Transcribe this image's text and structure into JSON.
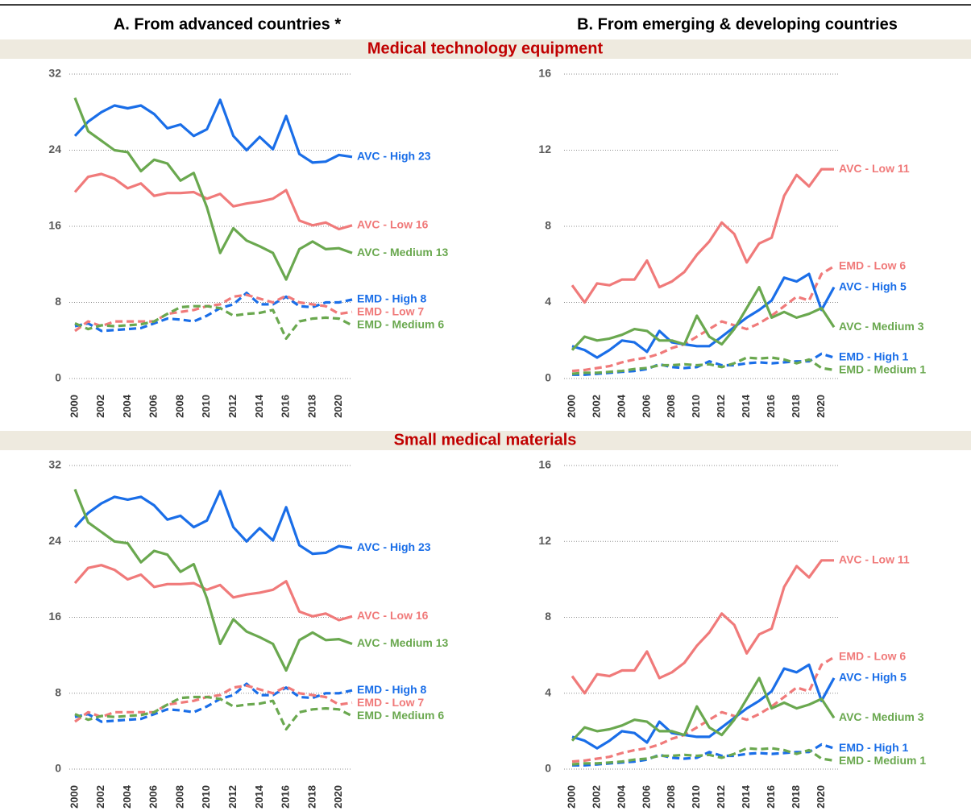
{
  "columns": [
    "A. From advanced countries *",
    "B. From emerging & developing countries"
  ],
  "sections": [
    "Medical technology equipment",
    "Small medical materials"
  ],
  "chart_data": [
    {
      "type": "line",
      "x": [
        2000,
        2001,
        2002,
        2003,
        2004,
        2005,
        2006,
        2007,
        2008,
        2009,
        2010,
        2011,
        2012,
        2013,
        2014,
        2015,
        2016,
        2017,
        2018,
        2019,
        2020,
        2021
      ],
      "xticks": [
        2000,
        2002,
        2004,
        2006,
        2008,
        2010,
        2012,
        2014,
        2016,
        2018,
        2020
      ],
      "ylim": [
        0,
        32
      ],
      "yticks": [
        0,
        8,
        16,
        24,
        32
      ],
      "grid": true,
      "series": [
        {
          "name": "AVC - High 23",
          "color": "#1a6ee8",
          "dashed": false,
          "values": [
            25.5,
            27,
            28,
            28.7,
            28.4,
            28.7,
            27.8,
            26.3,
            26.7,
            25.5,
            26.2,
            29.3,
            25.5,
            24,
            25.4,
            24.1,
            27.6,
            23.6,
            22.7,
            22.8,
            23.5,
            23.3
          ]
        },
        {
          "name": "AVC - Low 16",
          "color": "#f07a7a",
          "dashed": false,
          "values": [
            19.6,
            21.2,
            21.5,
            21,
            20,
            20.5,
            19.2,
            19.5,
            19.5,
            19.6,
            18.9,
            19.4,
            18.1,
            18.4,
            18.6,
            18.9,
            19.8,
            16.6,
            16.1,
            16.4,
            15.7,
            16.1
          ]
        },
        {
          "name": "AVC - Medium 13",
          "color": "#6aa84f",
          "dashed": false,
          "values": [
            29.5,
            26,
            25,
            24,
            23.8,
            21.8,
            23,
            22.6,
            20.8,
            21.6,
            18,
            13.2,
            15.8,
            14.5,
            13.9,
            13.2,
            10.4,
            13.6,
            14.4,
            13.6,
            13.7,
            13.2
          ]
        },
        {
          "name": "EMD - High 8",
          "color": "#1a6ee8",
          "dashed": true,
          "values": [
            5.5,
            5.8,
            5,
            5.1,
            5.2,
            5.3,
            5.8,
            6.3,
            6.2,
            6,
            6.6,
            7.4,
            7.8,
            9,
            7.8,
            7.8,
            8.6,
            7.6,
            7.5,
            8,
            8,
            8.3
          ]
        },
        {
          "name": "EMD - Low 7",
          "color": "#f07a7a",
          "dashed": true,
          "values": [
            5,
            6,
            5.5,
            6,
            6,
            6,
            6,
            6.8,
            7,
            7.2,
            7.6,
            7.8,
            8.6,
            8.8,
            8.4,
            8,
            8.7,
            8,
            7.8,
            7.6,
            6.8,
            7
          ]
        },
        {
          "name": "EMD - Medium 6",
          "color": "#6aa84f",
          "dashed": true,
          "values": [
            5.8,
            5.2,
            5.6,
            5.5,
            5.6,
            5.7,
            6,
            6.8,
            7.5,
            7.6,
            7.6,
            7.4,
            6.6,
            6.8,
            6.9,
            7.2,
            4.2,
            6,
            6.3,
            6.4,
            6.3,
            5.6
          ]
        }
      ]
    },
    {
      "type": "line",
      "x": [
        2000,
        2001,
        2002,
        2003,
        2004,
        2005,
        2006,
        2007,
        2008,
        2009,
        2010,
        2011,
        2012,
        2013,
        2014,
        2015,
        2016,
        2017,
        2018,
        2019,
        2020,
        2021
      ],
      "xticks": [
        2000,
        2002,
        2004,
        2006,
        2008,
        2010,
        2012,
        2014,
        2016,
        2018,
        2020
      ],
      "ylim": [
        0,
        16
      ],
      "yticks": [
        0,
        4,
        8,
        12,
        16
      ],
      "grid": true,
      "series": [
        {
          "name": "AVC - Low 11",
          "color": "#f07a7a",
          "dashed": false,
          "values": [
            4.9,
            4,
            5,
            4.9,
            5.2,
            5.2,
            6.2,
            4.8,
            5.1,
            5.6,
            6.5,
            7.2,
            8.2,
            7.6,
            6.1,
            7.1,
            7.4,
            9.6,
            10.7,
            10.1,
            11,
            11
          ]
        },
        {
          "name": "EMD - Low 6",
          "color": "#f07a7a",
          "dashed": true,
          "values": [
            0.4,
            0.45,
            0.55,
            0.65,
            0.85,
            1,
            1.1,
            1.3,
            1.6,
            1.8,
            2.2,
            2.6,
            3,
            2.8,
            2.6,
            2.9,
            3.3,
            3.8,
            4.3,
            4.1,
            5.5,
            5.9
          ]
        },
        {
          "name": "AVC - High 5",
          "color": "#1a6ee8",
          "dashed": false,
          "values": [
            1.7,
            1.5,
            1.1,
            1.5,
            2,
            1.9,
            1.4,
            2.5,
            1.9,
            1.8,
            1.7,
            1.7,
            2.2,
            2.7,
            3.2,
            3.6,
            4.1,
            5.3,
            5.1,
            5.5,
            3.6,
            4.8
          ]
        },
        {
          "name": "AVC - Medium 3",
          "color": "#6aa84f",
          "dashed": false,
          "values": [
            1.5,
            2.2,
            2,
            2.1,
            2.3,
            2.6,
            2.5,
            2,
            2,
            1.8,
            3.3,
            2.2,
            1.8,
            2.6,
            3.7,
            4.8,
            3.2,
            3.5,
            3.2,
            3.4,
            3.7,
            2.7
          ]
        },
        {
          "name": "EMD - High 1",
          "color": "#1a6ee8",
          "dashed": true,
          "values": [
            0.2,
            0.2,
            0.25,
            0.3,
            0.35,
            0.4,
            0.5,
            0.75,
            0.6,
            0.55,
            0.6,
            0.9,
            0.7,
            0.7,
            0.8,
            0.85,
            0.8,
            0.85,
            0.9,
            0.9,
            1.3,
            1.1
          ]
        },
        {
          "name": "EMD - Medium 1",
          "color": "#6aa84f",
          "dashed": true,
          "values": [
            0.25,
            0.3,
            0.3,
            0.35,
            0.4,
            0.5,
            0.55,
            0.7,
            0.7,
            0.75,
            0.7,
            0.75,
            0.6,
            0.8,
            1.1,
            1.05,
            1.1,
            1,
            0.8,
            1,
            0.55,
            0.45
          ]
        }
      ]
    },
    {
      "type": "line",
      "x": [
        2000,
        2001,
        2002,
        2003,
        2004,
        2005,
        2006,
        2007,
        2008,
        2009,
        2010,
        2011,
        2012,
        2013,
        2014,
        2015,
        2016,
        2017,
        2018,
        2019,
        2020,
        2021
      ],
      "xticks": [
        2000,
        2002,
        2004,
        2006,
        2008,
        2010,
        2012,
        2014,
        2016,
        2018,
        2020
      ],
      "ylim": [
        0,
        32
      ],
      "yticks": [
        0,
        8,
        16,
        24,
        32
      ],
      "grid": true,
      "series": [
        {
          "name": "AVC - High 23",
          "color": "#1a6ee8",
          "dashed": false,
          "values": [
            25.5,
            27,
            28,
            28.7,
            28.4,
            28.7,
            27.8,
            26.3,
            26.7,
            25.5,
            26.2,
            29.3,
            25.5,
            24,
            25.4,
            24.1,
            27.6,
            23.6,
            22.7,
            22.8,
            23.5,
            23.3
          ]
        },
        {
          "name": "AVC - Low 16",
          "color": "#f07a7a",
          "dashed": false,
          "values": [
            19.6,
            21.2,
            21.5,
            21,
            20,
            20.5,
            19.2,
            19.5,
            19.5,
            19.6,
            18.9,
            19.4,
            18.1,
            18.4,
            18.6,
            18.9,
            19.8,
            16.6,
            16.1,
            16.4,
            15.7,
            16.1
          ]
        },
        {
          "name": "AVC - Medium 13",
          "color": "#6aa84f",
          "dashed": false,
          "values": [
            29.5,
            26,
            25,
            24,
            23.8,
            21.8,
            23,
            22.6,
            20.8,
            21.6,
            18,
            13.2,
            15.8,
            14.5,
            13.9,
            13.2,
            10.4,
            13.6,
            14.4,
            13.6,
            13.7,
            13.2
          ]
        },
        {
          "name": "EMD - High 8",
          "color": "#1a6ee8",
          "dashed": true,
          "values": [
            5.5,
            5.8,
            5,
            5.1,
            5.2,
            5.3,
            5.8,
            6.3,
            6.2,
            6,
            6.6,
            7.4,
            7.8,
            9,
            7.8,
            7.8,
            8.6,
            7.6,
            7.5,
            8,
            8,
            8.3
          ]
        },
        {
          "name": "EMD - Low 7",
          "color": "#f07a7a",
          "dashed": true,
          "values": [
            5,
            6,
            5.5,
            6,
            6,
            6,
            6,
            6.8,
            7,
            7.2,
            7.6,
            7.8,
            8.6,
            8.8,
            8.4,
            8,
            8.7,
            8,
            7.8,
            7.6,
            6.8,
            7
          ]
        },
        {
          "name": "EMD - Medium 6",
          "color": "#6aa84f",
          "dashed": true,
          "values": [
            5.8,
            5.2,
            5.6,
            5.5,
            5.6,
            5.7,
            6,
            6.8,
            7.5,
            7.6,
            7.6,
            7.4,
            6.6,
            6.8,
            6.9,
            7.2,
            4.2,
            6,
            6.3,
            6.4,
            6.3,
            5.6
          ]
        }
      ]
    },
    {
      "type": "line",
      "x": [
        2000,
        2001,
        2002,
        2003,
        2004,
        2005,
        2006,
        2007,
        2008,
        2009,
        2010,
        2011,
        2012,
        2013,
        2014,
        2015,
        2016,
        2017,
        2018,
        2019,
        2020,
        2021
      ],
      "xticks": [
        2000,
        2002,
        2004,
        2006,
        2008,
        2010,
        2012,
        2014,
        2016,
        2018,
        2020
      ],
      "ylim": [
        0,
        16
      ],
      "yticks": [
        0,
        4,
        8,
        12,
        16
      ],
      "grid": true,
      "series": [
        {
          "name": "AVC - Low 11",
          "color": "#f07a7a",
          "dashed": false,
          "values": [
            4.9,
            4,
            5,
            4.9,
            5.2,
            5.2,
            6.2,
            4.8,
            5.1,
            5.6,
            6.5,
            7.2,
            8.2,
            7.6,
            6.1,
            7.1,
            7.4,
            9.6,
            10.7,
            10.1,
            11,
            11
          ]
        },
        {
          "name": "EMD - Low 6",
          "color": "#f07a7a",
          "dashed": true,
          "values": [
            0.4,
            0.45,
            0.55,
            0.65,
            0.85,
            1,
            1.1,
            1.3,
            1.6,
            1.8,
            2.2,
            2.6,
            3,
            2.8,
            2.6,
            2.9,
            3.3,
            3.8,
            4.3,
            4.1,
            5.5,
            5.9
          ]
        },
        {
          "name": "AVC - High 5",
          "color": "#1a6ee8",
          "dashed": false,
          "values": [
            1.7,
            1.5,
            1.1,
            1.5,
            2,
            1.9,
            1.4,
            2.5,
            1.9,
            1.8,
            1.7,
            1.7,
            2.2,
            2.7,
            3.2,
            3.6,
            4.1,
            5.3,
            5.1,
            5.5,
            3.6,
            4.8
          ]
        },
        {
          "name": "AVC - Medium 3",
          "color": "#6aa84f",
          "dashed": false,
          "values": [
            1.5,
            2.2,
            2,
            2.1,
            2.3,
            2.6,
            2.5,
            2,
            2,
            1.8,
            3.3,
            2.2,
            1.8,
            2.6,
            3.7,
            4.8,
            3.2,
            3.5,
            3.2,
            3.4,
            3.7,
            2.7
          ]
        },
        {
          "name": "EMD - High 1",
          "color": "#1a6ee8",
          "dashed": true,
          "values": [
            0.2,
            0.2,
            0.25,
            0.3,
            0.35,
            0.4,
            0.5,
            0.75,
            0.6,
            0.55,
            0.6,
            0.9,
            0.7,
            0.7,
            0.8,
            0.85,
            0.8,
            0.85,
            0.9,
            0.9,
            1.3,
            1.1
          ]
        },
        {
          "name": "EMD - Medium 1",
          "color": "#6aa84f",
          "dashed": true,
          "values": [
            0.25,
            0.3,
            0.3,
            0.35,
            0.4,
            0.5,
            0.55,
            0.7,
            0.7,
            0.75,
            0.7,
            0.75,
            0.6,
            0.8,
            1.1,
            1.05,
            1.1,
            1,
            0.8,
            1,
            0.55,
            0.45
          ]
        }
      ]
    }
  ]
}
